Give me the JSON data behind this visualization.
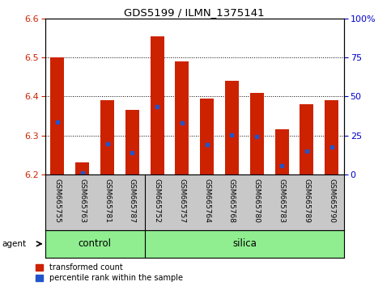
{
  "title": "GDS5199 / ILMN_1375141",
  "samples": [
    "GSM665755",
    "GSM665763",
    "GSM665781",
    "GSM665787",
    "GSM665752",
    "GSM665757",
    "GSM665764",
    "GSM665768",
    "GSM665780",
    "GSM665783",
    "GSM665789",
    "GSM665790"
  ],
  "bar_values": [
    6.5,
    6.23,
    6.39,
    6.365,
    6.555,
    6.49,
    6.395,
    6.44,
    6.41,
    6.315,
    6.38,
    6.39
  ],
  "blue_marker_values": [
    6.335,
    6.205,
    6.278,
    6.255,
    6.375,
    6.332,
    6.277,
    6.302,
    6.298,
    6.222,
    6.26,
    6.27
  ],
  "ylim_left": [
    6.2,
    6.6
  ],
  "ylim_right": [
    0,
    100
  ],
  "yticks_left": [
    6.2,
    6.3,
    6.4,
    6.5,
    6.6
  ],
  "yticks_right": [
    0,
    25,
    50,
    75,
    100
  ],
  "ytick_labels_right": [
    "0",
    "25",
    "50",
    "75",
    "100%"
  ],
  "bar_color": "#cc2200",
  "blue_color": "#2255cc",
  "bar_width": 0.55,
  "base_value": 6.2,
  "control_samples": 4,
  "control_label": "control",
  "silica_label": "silica",
  "agent_label": "agent",
  "legend_red": "transformed count",
  "legend_blue": "percentile rank within the sample",
  "bg_color": "#ffffff",
  "tick_label_color_left": "#cc2200",
  "tick_label_color_right": "#0000cc",
  "green_bg": "#90ee90",
  "xlabel_area_bg": "#c8c8c8"
}
